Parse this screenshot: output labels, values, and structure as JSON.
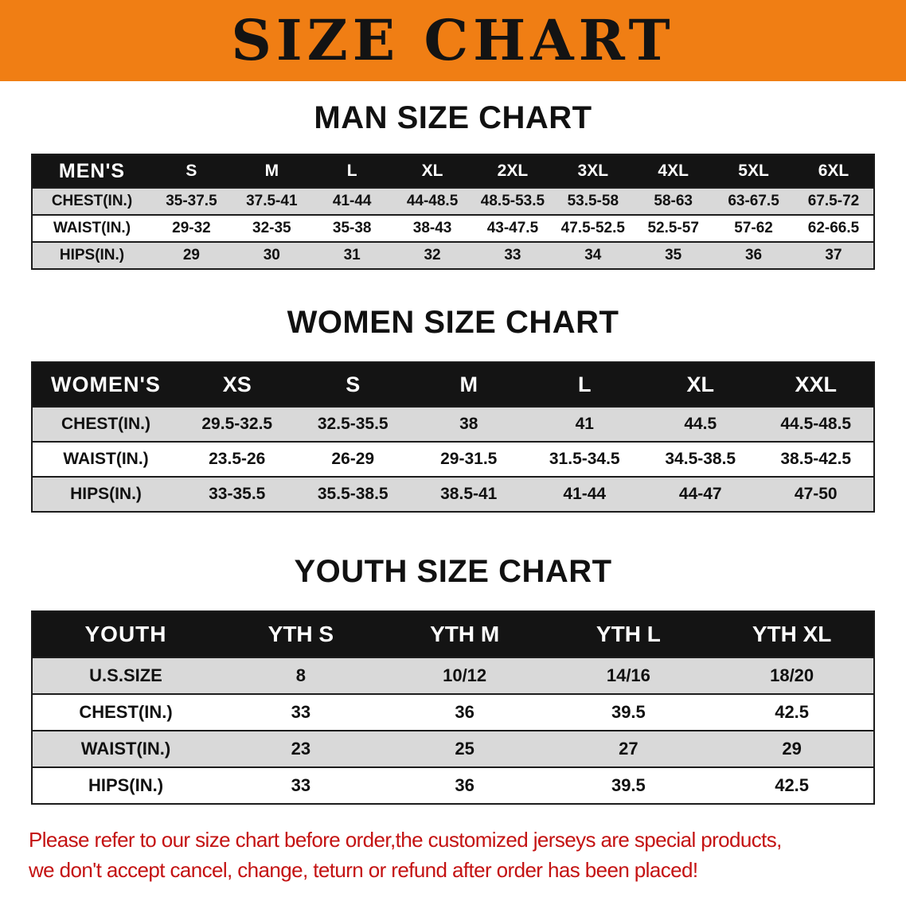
{
  "banner": {
    "title": "SIZE CHART"
  },
  "colors": {
    "banner_bg": "#f07e14",
    "header_row_bg": "#141414",
    "stripe_bg": "#d9d9d9",
    "footer_red": "#c41212"
  },
  "tables": {
    "men": {
      "title": "MAN SIZE CHART",
      "header": [
        "MEN'S",
        "S",
        "M",
        "L",
        "XL",
        "2XL",
        "3XL",
        "4XL",
        "5XL",
        "6XL"
      ],
      "rows": [
        [
          "CHEST(IN.)",
          "35-37.5",
          "37.5-41",
          "41-44",
          "44-48.5",
          "48.5-53.5",
          "53.5-58",
          "58-63",
          "63-67.5",
          "67.5-72"
        ],
        [
          "WAIST(IN.)",
          "29-32",
          "32-35",
          "35-38",
          "38-43",
          "43-47.5",
          "47.5-52.5",
          "52.5-57",
          "57-62",
          "62-66.5"
        ],
        [
          "HIPS(IN.)",
          "29",
          "30",
          "31",
          "32",
          "33",
          "34",
          "35",
          "36",
          "37"
        ]
      ]
    },
    "women": {
      "title": "WOMEN SIZE CHART",
      "header": [
        "WOMEN'S",
        "XS",
        "S",
        "M",
        "L",
        "XL",
        "XXL"
      ],
      "rows": [
        [
          "CHEST(IN.)",
          "29.5-32.5",
          "32.5-35.5",
          "38",
          "41",
          "44.5",
          "44.5-48.5"
        ],
        [
          "WAIST(IN.)",
          "23.5-26",
          "26-29",
          "29-31.5",
          "31.5-34.5",
          "34.5-38.5",
          "38.5-42.5"
        ],
        [
          "HIPS(IN.)",
          "33-35.5",
          "35.5-38.5",
          "38.5-41",
          "41-44",
          "44-47",
          "47-50"
        ]
      ]
    },
    "youth": {
      "title": "YOUTH SIZE CHART",
      "header": [
        "YOUTH",
        "YTH S",
        "YTH M",
        "YTH L",
        "YTH XL"
      ],
      "rows": [
        [
          "U.S.SIZE",
          "8",
          "10/12",
          "14/16",
          "18/20"
        ],
        [
          "CHEST(IN.)",
          "33",
          "36",
          "39.5",
          "42.5"
        ],
        [
          "WAIST(IN.)",
          "23",
          "25",
          "27",
          "29"
        ],
        [
          "HIPS(IN.)",
          "33",
          "36",
          "39.5",
          "42.5"
        ]
      ]
    }
  },
  "footer": {
    "line1": "Please refer to our size chart before order,the customized jerseys are special products,",
    "line2": "we don't accept cancel, change, teturn or refund after order has been placed!"
  }
}
